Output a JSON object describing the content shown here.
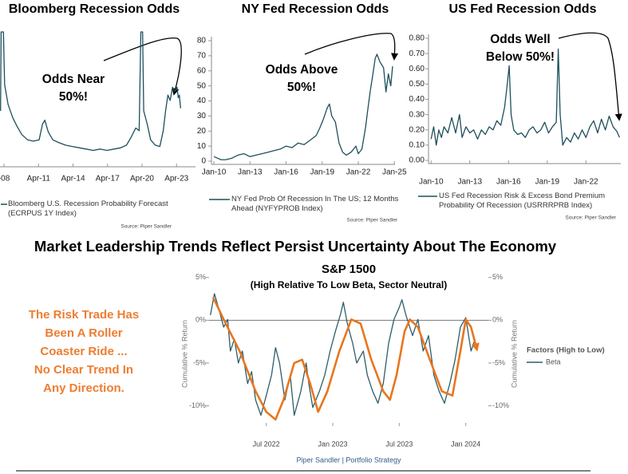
{
  "headline": "Market Leadership Trends Reflect Persist Uncertainty About The Economy",
  "side_note": [
    "The Risk Trade Has",
    "Been A Roller",
    "Coaster Ride ...",
    "No Clear Trend In",
    "Any Direction."
  ],
  "footer": "Piper Sandler  |  Portfolio Strategy",
  "chart_data": [
    {
      "type": "line",
      "title": "Bloomberg Recession Odds",
      "annotation": [
        "Odds Near",
        "50%!"
      ],
      "source": "Source: Piper Sandler",
      "xlim": [
        2007.9,
        2024.9
      ],
      "ylim": [
        0,
        100
      ],
      "xticks": [
        {
          "value": 2008.25,
          "label": "-08"
        },
        {
          "value": 2011.25,
          "label": "Apr-11"
        },
        {
          "value": 2014.25,
          "label": "Apr-14"
        },
        {
          "value": 2017.25,
          "label": "Apr-17"
        },
        {
          "value": 2020.25,
          "label": "Apr-20"
        },
        {
          "value": 2023.25,
          "label": "Apr-23"
        }
      ],
      "x": [
        2007.95,
        2008.0,
        2008.2,
        2008.3,
        2008.6,
        2009.0,
        2009.4,
        2009.8,
        2010.3,
        2010.8,
        2011.3,
        2011.6,
        2011.8,
        2012.1,
        2012.5,
        2013.0,
        2013.6,
        2014.2,
        2014.8,
        2015.4,
        2016.0,
        2016.6,
        2017.2,
        2017.8,
        2018.4,
        2018.9,
        2019.3,
        2019.7,
        2020.0,
        2020.15,
        2020.3,
        2020.4,
        2020.7,
        2021.0,
        2021.4,
        2021.8,
        2022.1,
        2022.3,
        2022.5,
        2022.7,
        2022.9,
        2023.1,
        2023.3,
        2023.4,
        2023.5,
        2023.6
      ],
      "series": [
        {
          "name": "Bloomberg U.S. Recession Probability Forecast (ECRPUS 1Y Index)",
          "color": "#1d4f5c",
          "values": [
            40,
            100,
            100,
            60,
            45,
            35,
            28,
            22,
            18,
            17,
            18,
            30,
            33,
            24,
            18,
            16,
            14,
            13,
            12,
            11,
            10,
            11,
            10,
            11,
            12,
            14,
            20,
            27,
            25,
            100,
            100,
            40,
            30,
            18,
            14,
            13,
            25,
            40,
            52,
            48,
            58,
            55,
            58,
            50,
            52,
            42
          ]
        }
      ]
    },
    {
      "type": "line",
      "title": "NY Fed Recession Odds",
      "annotation": [
        "Odds Above",
        "50%!"
      ],
      "source": "Source: Piper Sandler",
      "xlim": [
        2009.8,
        2025.05
      ],
      "ylim": [
        0,
        80
      ],
      "yticks": [
        0,
        10,
        20,
        30,
        40,
        50,
        60,
        70,
        80
      ],
      "xticks": [
        {
          "value": 2010,
          "label": "Jan-10"
        },
        {
          "value": 2013,
          "label": "Jan-13"
        },
        {
          "value": 2016,
          "label": "Jan-16"
        },
        {
          "value": 2019,
          "label": "Jan-19"
        },
        {
          "value": 2022,
          "label": "Jan-22"
        },
        {
          "value": 2025,
          "label": "Jan-25"
        }
      ],
      "x": [
        2010,
        2010.3,
        2010.6,
        2011,
        2011.5,
        2012,
        2012.5,
        2013,
        2013.5,
        2014,
        2014.5,
        2015,
        2015.5,
        2016,
        2016.5,
        2017,
        2017.5,
        2018,
        2018.5,
        2018.8,
        2019.1,
        2019.4,
        2019.6,
        2019.8,
        2020.1,
        2020.4,
        2020.7,
        2021,
        2021.4,
        2021.8,
        2022,
        2022.3,
        2022.6,
        2022.8,
        2023,
        2023.2,
        2023.4,
        2023.55,
        2023.8,
        2024.1,
        2024.3,
        2024.5,
        2024.7,
        2024.85
      ],
      "series": [
        {
          "name": "NY Fed Prob Of Recession In The US; 12 Months Ahead (NYFYPROB Index)",
          "color": "#1d4f5c",
          "values": [
            3,
            2,
            1,
            1,
            2,
            4,
            5,
            3,
            4,
            5,
            6,
            7,
            8,
            10,
            9,
            12,
            11,
            14,
            17,
            22,
            28,
            35,
            38,
            30,
            26,
            12,
            6,
            4,
            6,
            10,
            5,
            8,
            22,
            35,
            47,
            57,
            68,
            71,
            66,
            62,
            46,
            58,
            50,
            63
          ]
        }
      ]
    },
    {
      "type": "line",
      "title": "US Fed Recession Odds",
      "annotation": [
        "Odds Well",
        "Below 50%!"
      ],
      "source": "Source: Piper Sandler",
      "xlim": [
        2009.8,
        2024.7
      ],
      "ylim": [
        0,
        0.8
      ],
      "yticks": [
        {
          "value": 0,
          "label": "0.00"
        },
        {
          "value": 0.1,
          "label": "0.10"
        },
        {
          "value": 0.2,
          "label": "0.20"
        },
        {
          "value": 0.3,
          "label": "0.30"
        },
        {
          "value": 0.4,
          "label": "0.40"
        },
        {
          "value": 0.5,
          "label": "0.50"
        },
        {
          "value": 0.6,
          "label": "0.60"
        },
        {
          "value": 0.7,
          "label": "0.70"
        },
        {
          "value": 0.8,
          "label": "0.80"
        }
      ],
      "xticks": [
        {
          "value": 2010,
          "label": "Jan-10"
        },
        {
          "value": 2013,
          "label": "Jan-13"
        },
        {
          "value": 2016,
          "label": "Jan-16"
        },
        {
          "value": 2019,
          "label": "Jan-19"
        },
        {
          "value": 2022,
          "label": "Jan-22"
        }
      ],
      "x": [
        2010,
        2010.2,
        2010.4,
        2010.6,
        2010.8,
        2011,
        2011.3,
        2011.6,
        2011.9,
        2012.2,
        2012.4,
        2012.7,
        2013,
        2013.3,
        2013.6,
        2013.9,
        2014.2,
        2014.5,
        2014.8,
        2015.1,
        2015.4,
        2015.7,
        2015.9,
        2016.05,
        2016.2,
        2016.4,
        2016.7,
        2017,
        2017.3,
        2017.6,
        2017.9,
        2018.2,
        2018.5,
        2018.8,
        2019.1,
        2019.4,
        2019.7,
        2019.85,
        2020.0,
        2020.2,
        2020.5,
        2020.8,
        2021.1,
        2021.4,
        2021.7,
        2022,
        2022.3,
        2022.6,
        2022.9,
        2023.2,
        2023.5,
        2023.8,
        2024.1,
        2024.4,
        2024.6
      ],
      "series": [
        {
          "name": "US Fed Recession Risk & Excess Bond Premium Probability Of Recession (USRRRPRB Index)",
          "color": "#1d4f5c",
          "values": [
            0.14,
            0.22,
            0.1,
            0.2,
            0.15,
            0.22,
            0.18,
            0.28,
            0.18,
            0.3,
            0.15,
            0.22,
            0.18,
            0.2,
            0.14,
            0.2,
            0.17,
            0.22,
            0.2,
            0.26,
            0.23,
            0.35,
            0.5,
            0.62,
            0.3,
            0.2,
            0.17,
            0.18,
            0.15,
            0.2,
            0.22,
            0.18,
            0.2,
            0.25,
            0.18,
            0.22,
            0.25,
            0.73,
            0.3,
            0.1,
            0.15,
            0.12,
            0.18,
            0.14,
            0.2,
            0.15,
            0.22,
            0.26,
            0.18,
            0.27,
            0.2,
            0.29,
            0.22,
            0.19,
            0.15
          ]
        }
      ]
    },
    {
      "type": "line",
      "title": "S&P 1500",
      "subtitle": "(High Relative To Low Beta, Sector Neutral)",
      "y_label": "Cumulative % Return",
      "y2_label": "Cumulative % Return",
      "legend_title": "Factors (High to Low)",
      "refline": 0,
      "xlim": [
        2022.07,
        2024.17
      ],
      "ylim": [
        -12,
        6
      ],
      "y2lim": [
        -12,
        6
      ],
      "yticks": [
        {
          "value": 5,
          "label": "5%"
        },
        {
          "value": 0,
          "label": "0%"
        },
        {
          "value": -5,
          "label": "-5%"
        },
        {
          "value": -10,
          "label": "-10%"
        }
      ],
      "y2ticks": [
        {
          "value": 5,
          "label": "5%"
        },
        {
          "value": 0,
          "label": "0%"
        },
        {
          "value": -5,
          "label": "-5%"
        },
        {
          "value": -10,
          "label": "-10%"
        }
      ],
      "xticks": [
        {
          "value": 2022.5,
          "label": "Jul 2022"
        },
        {
          "value": 2023.0,
          "label": "Jan 2023"
        },
        {
          "value": 2023.5,
          "label": "Jul 2023"
        },
        {
          "value": 2024.0,
          "label": "Jan 2024"
        }
      ],
      "series": [
        {
          "name": "Beta",
          "color": "#2e5e6a",
          "x": [
            2022.08,
            2022.11,
            2022.14,
            2022.18,
            2022.21,
            2022.23,
            2022.26,
            2022.29,
            2022.32,
            2022.36,
            2022.39,
            2022.42,
            2022.46,
            2022.5,
            2022.54,
            2022.57,
            2022.6,
            2022.64,
            2022.68,
            2022.71,
            2022.76,
            2022.8,
            2022.82,
            2022.85,
            2022.9,
            2022.94,
            2022.98,
            2023.02,
            2023.06,
            2023.08,
            2023.11,
            2023.15,
            2023.18,
            2023.23,
            2023.26,
            2023.3,
            2023.34,
            2023.38,
            2023.42,
            2023.46,
            2023.5,
            2023.52,
            2023.55,
            2023.6,
            2023.64,
            2023.68,
            2023.72,
            2023.76,
            2023.8,
            2023.84,
            2023.88,
            2023.92,
            2023.96,
            2024.0,
            2024.04,
            2024.07
          ],
          "values": [
            0.6,
            3.1,
            1.5,
            -0.8,
            0.1,
            -3.6,
            -2.2,
            -5.0,
            -3.6,
            -7.4,
            -6.0,
            -9.3,
            -11.1,
            -8.8,
            -6.4,
            -3.2,
            -5.0,
            -9.3,
            -6.4,
            -11.1,
            -8.3,
            -5.0,
            -7.4,
            -10.2,
            -8.3,
            -6.4,
            -3.6,
            -1.3,
            0.8,
            2.1,
            -0.4,
            -2.7,
            -5.0,
            -3.6,
            -6.4,
            -8.3,
            -9.7,
            -7.4,
            -2.7,
            0.1,
            1.5,
            2.4,
            0.6,
            -1.8,
            0.1,
            -3.6,
            -1.8,
            -6.4,
            -8.3,
            -9.7,
            -7.4,
            -4.6,
            -0.8,
            0.3,
            -3.6,
            -2.2
          ]
        },
        {
          "color": "#e8761e",
          "arrow": true,
          "x": [
            2022.1,
            2022.18,
            2022.3,
            2022.42,
            2022.5,
            2022.57,
            2022.63,
            2022.71,
            2022.77,
            2022.83,
            2022.89,
            2022.96,
            2023.05,
            2023.14,
            2023.21,
            2023.29,
            2023.38,
            2023.43,
            2023.48,
            2023.54,
            2023.58,
            2023.64,
            2023.73,
            2023.82,
            2023.9,
            2023.96,
            2024.0,
            2024.04,
            2024.08
          ],
          "values": [
            2.7,
            0.1,
            -3.6,
            -8.3,
            -10.7,
            -11.6,
            -9.3,
            -5.0,
            -4.6,
            -7.4,
            -10.7,
            -8.3,
            -3.6,
            0.1,
            -0.4,
            -4.6,
            -8.3,
            -9.3,
            -6.4,
            -1.3,
            0.1,
            -0.8,
            -4.6,
            -8.3,
            -8.8,
            -3.6,
            0.1,
            -0.8,
            -3.2
          ]
        }
      ]
    }
  ]
}
